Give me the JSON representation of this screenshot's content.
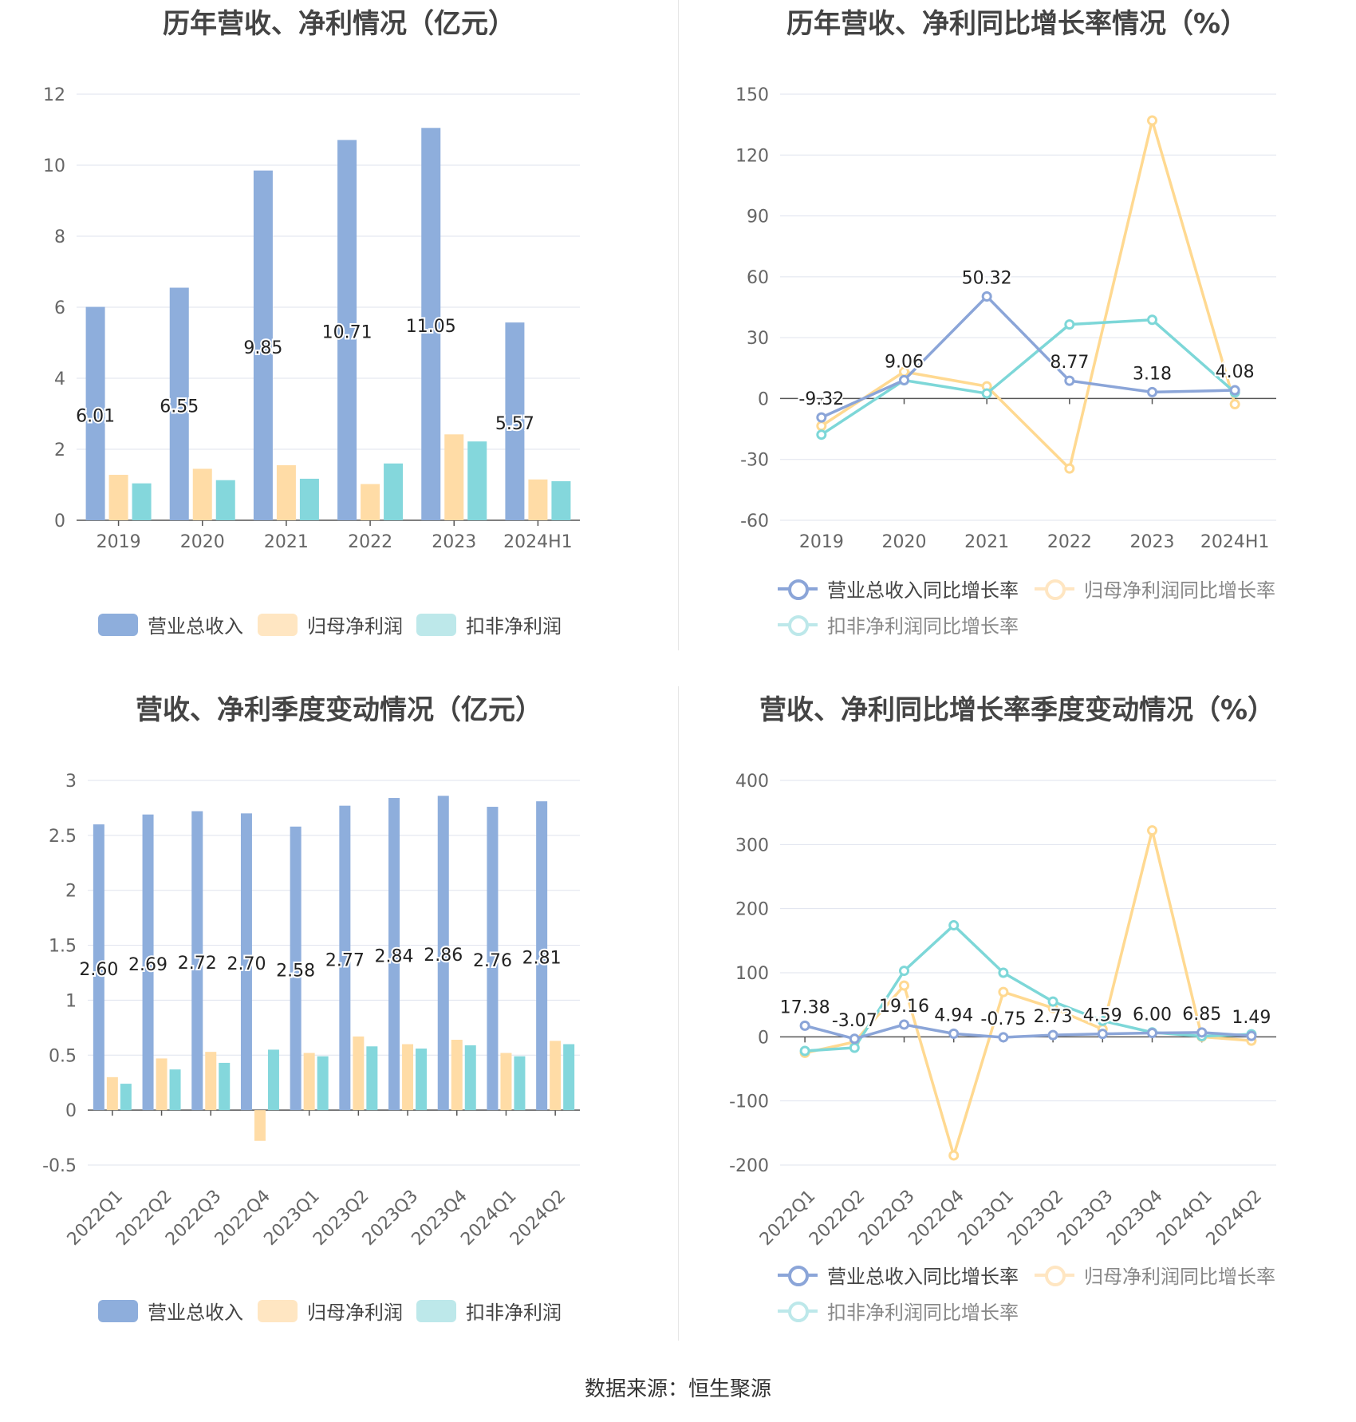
{
  "colors": {
    "revenue": "#8eaedc",
    "netprofit": "#ffdca6",
    "deducted": "#84d7dc",
    "rev_line": "#8ba5d8",
    "np_line": "#ffd991",
    "dd_line": "#7dd7d8"
  },
  "source_text": "数据来源：恒生聚源",
  "chart_data": [
    {
      "id": "annual_values",
      "type": "bar",
      "title": "历年营收、净利情况（亿元）",
      "categories": [
        "2019",
        "2020",
        "2021",
        "2022",
        "2023",
        "2024H1"
      ],
      "ylim": [
        0,
        12
      ],
      "yticks": [
        "0",
        "2",
        "4",
        "6",
        "8",
        "10",
        "12"
      ],
      "series": [
        {
          "name": "营业总收入",
          "values": [
            6.01,
            6.55,
            9.85,
            10.71,
            11.05,
            5.57
          ],
          "labels": [
            "6.01",
            "6.55",
            "9.85",
            "10.71",
            "11.05",
            "5.57"
          ]
        },
        {
          "name": "归母净利润",
          "values": [
            1.28,
            1.45,
            1.55,
            1.02,
            2.42,
            1.15
          ]
        },
        {
          "name": "扣非净利润",
          "values": [
            1.04,
            1.13,
            1.17,
            1.6,
            2.22,
            1.1
          ]
        }
      ],
      "legend": "bottom",
      "grid": true
    },
    {
      "id": "annual_growth",
      "type": "line",
      "title": "历年营收、净利同比增长率情况（%）",
      "categories": [
        "2019",
        "2020",
        "2021",
        "2022",
        "2023",
        "2024H1"
      ],
      "ylim": [
        -60,
        150
      ],
      "yticks": [
        "-60",
        "-30",
        "0",
        "30",
        "60",
        "90",
        "120",
        "150"
      ],
      "series": [
        {
          "name": "营业总收入同比增长率",
          "values": [
            -9.32,
            9.06,
            50.32,
            8.77,
            3.18,
            4.08
          ],
          "labels": [
            "-9.32",
            "9.06",
            "50.32",
            "8.77",
            "3.18",
            "4.08"
          ]
        },
        {
          "name": "归母净利润同比增长率",
          "values": [
            -13.5,
            13.2,
            6.0,
            -34.5,
            137.0,
            -2.8
          ]
        },
        {
          "name": "扣非净利润同比增长率",
          "values": [
            -17.8,
            9.0,
            2.5,
            36.5,
            38.8,
            3.0
          ]
        }
      ],
      "legend": "bottom",
      "grid": true
    },
    {
      "id": "quarterly_values",
      "type": "bar",
      "title": "营收、净利季度变动情况（亿元）",
      "categories": [
        "2022Q1",
        "2022Q2",
        "2022Q3",
        "2022Q4",
        "2023Q1",
        "2023Q2",
        "2023Q3",
        "2023Q4",
        "2024Q1",
        "2024Q2"
      ],
      "ylim": [
        -0.5,
        3
      ],
      "yticks": [
        "-0.5",
        "0",
        "0.5",
        "1",
        "1.5",
        "2",
        "2.5",
        "3"
      ],
      "series": [
        {
          "name": "营业总收入",
          "values": [
            2.6,
            2.69,
            2.72,
            2.7,
            2.58,
            2.77,
            2.84,
            2.86,
            2.76,
            2.81
          ],
          "labels": [
            "2.60",
            "2.69",
            "2.72",
            "2.70",
            "2.58",
            "2.77",
            "2.84",
            "2.86",
            "2.76",
            "2.81"
          ]
        },
        {
          "name": "归母净利润",
          "values": [
            0.3,
            0.47,
            0.53,
            -0.28,
            0.52,
            0.67,
            0.6,
            0.64,
            0.52,
            0.63
          ]
        },
        {
          "name": "扣非净利润",
          "values": [
            0.24,
            0.37,
            0.43,
            0.55,
            0.49,
            0.58,
            0.56,
            0.59,
            0.49,
            0.6
          ]
        }
      ],
      "legend": "bottom",
      "grid": true
    },
    {
      "id": "quarterly_growth",
      "type": "line",
      "title": "营收、净利同比增长率季度变动情况（%）",
      "categories": [
        "2022Q1",
        "2022Q2",
        "2022Q3",
        "2022Q4",
        "2023Q1",
        "2023Q2",
        "2023Q3",
        "2023Q4",
        "2024Q1",
        "2024Q2"
      ],
      "ylim": [
        -200,
        400
      ],
      "yticks": [
        "-200",
        "-100",
        "0",
        "100",
        "200",
        "300",
        "400"
      ],
      "series": [
        {
          "name": "营业总收入同比增长率",
          "values": [
            17.38,
            -3.07,
            19.16,
            4.94,
            -0.75,
            2.73,
            4.59,
            6.0,
            6.85,
            1.49
          ],
          "labels": [
            "17.38",
            "-3.07",
            "19.16",
            "4.94",
            "-0.75",
            "2.73",
            "4.59",
            "6.00",
            "6.85",
            "1.49"
          ]
        },
        {
          "name": "归母净利润同比增长率",
          "values": [
            -25,
            -8,
            80,
            -185,
            70,
            45,
            12,
            322,
            0,
            -6
          ]
        },
        {
          "name": "扣非净利润同比增长率",
          "values": [
            -22,
            -17,
            103,
            174,
            100,
            55,
            25,
            7,
            1,
            4
          ]
        }
      ],
      "legend": "bottom",
      "grid": true
    }
  ]
}
